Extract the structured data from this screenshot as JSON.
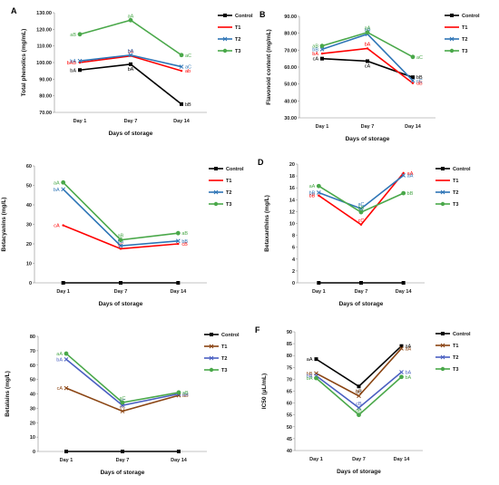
{
  "chart_data": [
    {
      "panel": "A",
      "type": "line",
      "categories": [
        "Day 1",
        "Day 7",
        "Day 14"
      ],
      "xlabel": "Days of storage",
      "ylabel": "Total phenolics (mg/mL)",
      "ylim": [
        70,
        130
      ],
      "yticks": [
        "70.00",
        "80.00",
        "90.00",
        "100.00",
        "110.00",
        "120.00",
        "130.00"
      ],
      "ystep": 10,
      "grid": false,
      "legend_position": "right",
      "series": [
        {
          "name": "Control",
          "color": "#000000",
          "marker": "square",
          "values": [
            95.5,
            99,
            75
          ],
          "labels": [
            "bA",
            "bA",
            "bB"
          ]
        },
        {
          "name": "T1",
          "color": "#ff0000",
          "marker": "line",
          "values": [
            100,
            104,
            95
          ],
          "labels": [
            "bAB",
            "bA",
            "ab"
          ]
        },
        {
          "name": "T2",
          "color": "#2e75b6",
          "marker": "cross",
          "values": [
            101,
            104.5,
            97.5
          ],
          "labels": [
            "bA",
            "bA",
            "aC"
          ]
        },
        {
          "name": "T3",
          "color": "#4aa84a",
          "marker": "circle",
          "values": [
            117,
            125.5,
            104.5
          ],
          "labels": [
            "aB",
            "aA",
            "aC"
          ]
        }
      ]
    },
    {
      "panel": "B",
      "type": "line",
      "categories": [
        "Day 1",
        "Day 7",
        "Day 14"
      ],
      "xlabel": "Days of storage",
      "ylabel": "Flavonoid content (mg/mL)",
      "ylim": [
        30,
        90
      ],
      "yticks": [
        "30.00",
        "40.00",
        "50.00",
        "60.00",
        "70.00",
        "80.00",
        "90.00"
      ],
      "ystep": 10,
      "grid": false,
      "legend_position": "right",
      "series": [
        {
          "name": "Control",
          "color": "#000000",
          "marker": "square",
          "values": [
            65,
            63.5,
            54
          ],
          "labels": [
            "cA",
            "cA",
            "bB"
          ]
        },
        {
          "name": "T1",
          "color": "#ff0000",
          "marker": "line",
          "values": [
            68,
            71,
            50.5
          ],
          "labels": [
            "bA",
            "bA",
            "dB"
          ]
        },
        {
          "name": "T2",
          "color": "#2e75b6",
          "marker": "cross",
          "values": [
            70.5,
            79.5,
            52
          ],
          "labels": [
            "bB",
            "aA",
            "cC"
          ]
        },
        {
          "name": "T3",
          "color": "#4aa84a",
          "marker": "circle",
          "values": [
            72.5,
            80.5,
            66
          ],
          "labels": [
            "aB",
            "aA",
            "aC"
          ]
        }
      ]
    },
    {
      "panel": "C",
      "type": "line",
      "categories": [
        "Day 1",
        "Day 7",
        "Day 14"
      ],
      "xlabel": "Days of storage",
      "ylabel": "Betacyanins (mg/L)",
      "ylim": [
        0,
        60
      ],
      "yticks": [
        "0",
        "10",
        "20",
        "30",
        "40",
        "50",
        "60"
      ],
      "ystep": 10,
      "grid": false,
      "legend_position": "right",
      "series": [
        {
          "name": "Control",
          "color": "#000000",
          "marker": "square",
          "values": [
            0,
            0,
            0
          ],
          "labels": [
            "",
            "",
            ""
          ]
        },
        {
          "name": "T1",
          "color": "#ff0000",
          "marker": "line",
          "values": [
            29.5,
            17.5,
            20
          ],
          "labels": [
            "cA",
            "cC",
            "cB"
          ]
        },
        {
          "name": "T2",
          "color": "#2e75b6",
          "marker": "cross",
          "values": [
            48,
            19,
            21.5
          ],
          "labels": [
            "bA",
            "bB",
            "bB"
          ]
        },
        {
          "name": "T3",
          "color": "#4aa84a",
          "marker": "circle",
          "values": [
            51.5,
            22,
            25.5
          ],
          "labels": [
            "aA",
            "aB",
            "aB"
          ]
        }
      ]
    },
    {
      "panel": "D",
      "type": "line",
      "categories": [
        "Day 1",
        "Day 7",
        "Day 14"
      ],
      "xlabel": "Days of storage",
      "ylabel": "Betaxanthins (mg/L)",
      "ylim": [
        0,
        20
      ],
      "yticks": [
        "0",
        "2",
        "4",
        "6",
        "8",
        "10",
        "12",
        "14",
        "16",
        "18",
        "20"
      ],
      "ystep": 2,
      "grid": false,
      "legend_position": "right",
      "series": [
        {
          "name": "Control",
          "color": "#000000",
          "marker": "square",
          "values": [
            0,
            0,
            0
          ],
          "labels": [
            "",
            "",
            ""
          ]
        },
        {
          "name": "T1",
          "color": "#ff0000",
          "marker": "line",
          "values": [
            14.7,
            9.8,
            18.5
          ],
          "labels": [
            "bB",
            "cC",
            "aA"
          ]
        },
        {
          "name": "T2",
          "color": "#2e75b6",
          "marker": "cross",
          "values": [
            15.2,
            12.5,
            18.1
          ],
          "labels": [
            "bB",
            "aC",
            "aA"
          ]
        },
        {
          "name": "T3",
          "color": "#4aa84a",
          "marker": "circle",
          "values": [
            16.3,
            11.9,
            15.1
          ],
          "labels": [
            "aA",
            "bB",
            "bB"
          ]
        }
      ]
    },
    {
      "panel": "E",
      "type": "line",
      "categories": [
        "Day 1",
        "Day 7",
        "Day 14"
      ],
      "xlabel": "Days of storage",
      "ylabel": "Betalains (mg/L)",
      "ylim": [
        0,
        80
      ],
      "yticks": [
        "0",
        "10",
        "20",
        "30",
        "40",
        "50",
        "60",
        "70",
        "80"
      ],
      "ystep": 10,
      "grid": false,
      "legend_position": "right",
      "series": [
        {
          "name": "Control",
          "color": "#000000",
          "marker": "square",
          "values": [
            0,
            0,
            0
          ],
          "labels": [
            "",
            "",
            ""
          ]
        },
        {
          "name": "T1",
          "color": "#8b4513",
          "marker": "cross",
          "values": [
            44,
            28,
            39
          ],
          "labels": [
            "cA",
            "cC",
            "aB"
          ]
        },
        {
          "name": "T2",
          "color": "#4a5fc1",
          "marker": "cross",
          "values": [
            64,
            32,
            40
          ],
          "labels": [
            "bA",
            "bC",
            "aB"
          ]
        },
        {
          "name": "T3",
          "color": "#4aa84a",
          "marker": "circle",
          "values": [
            68,
            34,
            41
          ],
          "labels": [
            "aA",
            "aC",
            "aB"
          ]
        }
      ]
    },
    {
      "panel": "F",
      "type": "line",
      "categories": [
        "Day 1",
        "Day 7",
        "Day 14"
      ],
      "xlabel": "Days of storage",
      "ylabel": "IC50 (μL/mL)",
      "ylim": [
        40,
        90
      ],
      "yticks": [
        "40",
        "45",
        "50",
        "55",
        "60",
        "65",
        "70",
        "75",
        "80",
        "85",
        "90"
      ],
      "ystep": 5,
      "grid": false,
      "legend_position": "right",
      "series": [
        {
          "name": "Control",
          "color": "#000000",
          "marker": "square",
          "values": [
            78.5,
            67,
            84
          ],
          "labels": [
            "aA",
            "aB",
            "aA"
          ]
        },
        {
          "name": "T1",
          "color": "#8b4513",
          "marker": "cross",
          "values": [
            72.5,
            63,
            83
          ],
          "labels": [
            "bB",
            "bC",
            "aA"
          ]
        },
        {
          "name": "T2",
          "color": "#4a5fc1",
          "marker": "cross",
          "values": [
            71.5,
            58,
            73
          ],
          "labels": [
            "bA",
            "cB",
            "bA"
          ]
        },
        {
          "name": "T3",
          "color": "#4aa84a",
          "marker": "circle",
          "values": [
            70.5,
            55,
            71
          ],
          "labels": [
            "bA",
            "dB",
            "bA"
          ]
        }
      ]
    }
  ]
}
